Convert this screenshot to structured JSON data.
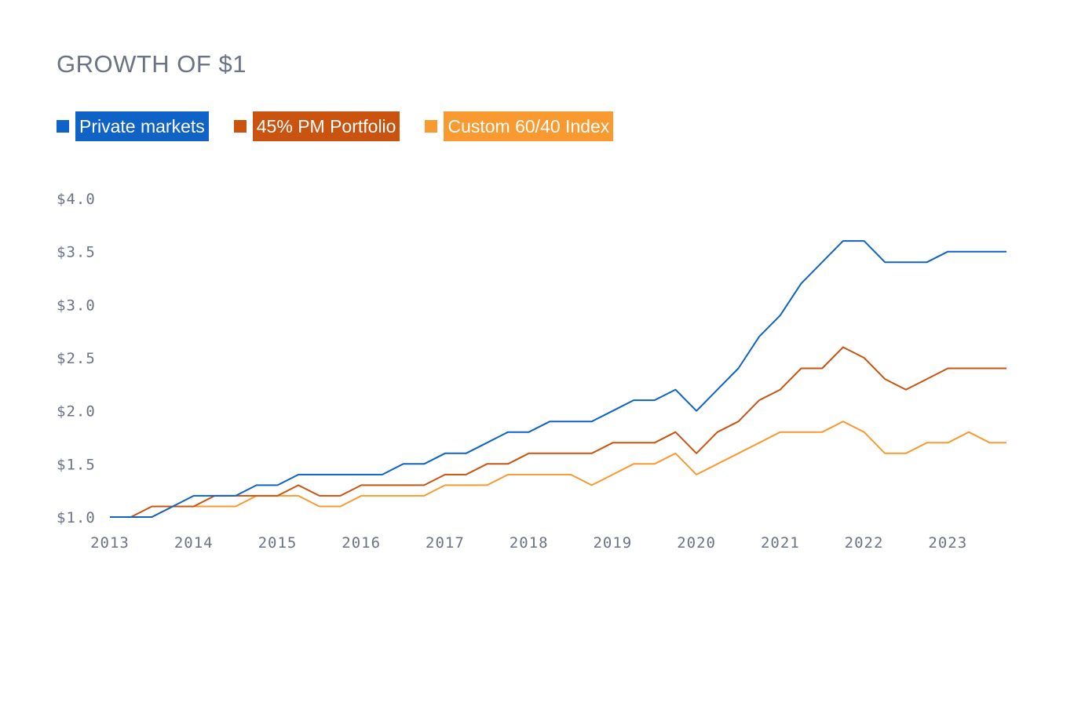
{
  "title": "GROWTH OF $1",
  "chart_data": {
    "type": "line",
    "title": "GROWTH OF $1",
    "xlabel": "",
    "ylabel": "",
    "x_ticks": [
      "2013",
      "2014",
      "2015",
      "2016",
      "2017",
      "2018",
      "2019",
      "2020",
      "2021",
      "2022",
      "2023"
    ],
    "y_ticks": [
      "$1.0",
      "$1.5",
      "$2.0",
      "$2.5",
      "$3.0",
      "$3.5",
      "$4.0"
    ],
    "xlim": [
      2013,
      2023.7
    ],
    "ylim": [
      1.0,
      4.0
    ],
    "grid": false,
    "legend_position": "top-left",
    "x": [
      2013.0,
      2013.25,
      2013.5,
      2013.75,
      2014.0,
      2014.25,
      2014.5,
      2014.75,
      2015.0,
      2015.25,
      2015.5,
      2015.75,
      2016.0,
      2016.25,
      2016.5,
      2016.75,
      2017.0,
      2017.25,
      2017.5,
      2017.75,
      2018.0,
      2018.25,
      2018.5,
      2018.75,
      2019.0,
      2019.25,
      2019.5,
      2019.75,
      2020.0,
      2020.25,
      2020.5,
      2020.75,
      2021.0,
      2021.25,
      2021.5,
      2021.75,
      2022.0,
      2022.25,
      2022.5,
      2022.75,
      2023.0,
      2023.25,
      2023.5,
      2023.7
    ],
    "series": [
      {
        "name": "Private markets",
        "color": "#0f62c6",
        "values": [
          1.0,
          1.0,
          1.0,
          1.1,
          1.2,
          1.2,
          1.2,
          1.3,
          1.3,
          1.4,
          1.4,
          1.4,
          1.4,
          1.4,
          1.5,
          1.5,
          1.6,
          1.6,
          1.7,
          1.8,
          1.8,
          1.9,
          1.9,
          1.9,
          2.0,
          2.1,
          2.1,
          2.2,
          2.0,
          2.2,
          2.4,
          2.7,
          2.9,
          3.2,
          3.4,
          3.6,
          3.6,
          3.4,
          3.4,
          3.4,
          3.5,
          3.5,
          3.5,
          3.5
        ]
      },
      {
        "name": "45% PM Portfolio",
        "color": "#c9530f",
        "values": [
          1.0,
          1.0,
          1.1,
          1.1,
          1.1,
          1.2,
          1.2,
          1.2,
          1.2,
          1.3,
          1.2,
          1.2,
          1.3,
          1.3,
          1.3,
          1.3,
          1.4,
          1.4,
          1.5,
          1.5,
          1.6,
          1.6,
          1.6,
          1.6,
          1.7,
          1.7,
          1.7,
          1.8,
          1.6,
          1.8,
          1.9,
          2.1,
          2.2,
          2.4,
          2.4,
          2.6,
          2.5,
          2.3,
          2.2,
          2.3,
          2.4,
          2.4,
          2.4,
          2.4
        ]
      },
      {
        "name": "Custom 60/40 Index",
        "color": "#f99a31",
        "values": [
          1.0,
          1.0,
          1.0,
          1.1,
          1.1,
          1.1,
          1.1,
          1.2,
          1.2,
          1.2,
          1.1,
          1.1,
          1.2,
          1.2,
          1.2,
          1.2,
          1.3,
          1.3,
          1.3,
          1.4,
          1.4,
          1.4,
          1.4,
          1.3,
          1.4,
          1.5,
          1.5,
          1.6,
          1.4,
          1.5,
          1.6,
          1.7,
          1.8,
          1.8,
          1.8,
          1.9,
          1.8,
          1.6,
          1.6,
          1.7,
          1.7,
          1.8,
          1.7,
          1.7
        ]
      }
    ]
  }
}
